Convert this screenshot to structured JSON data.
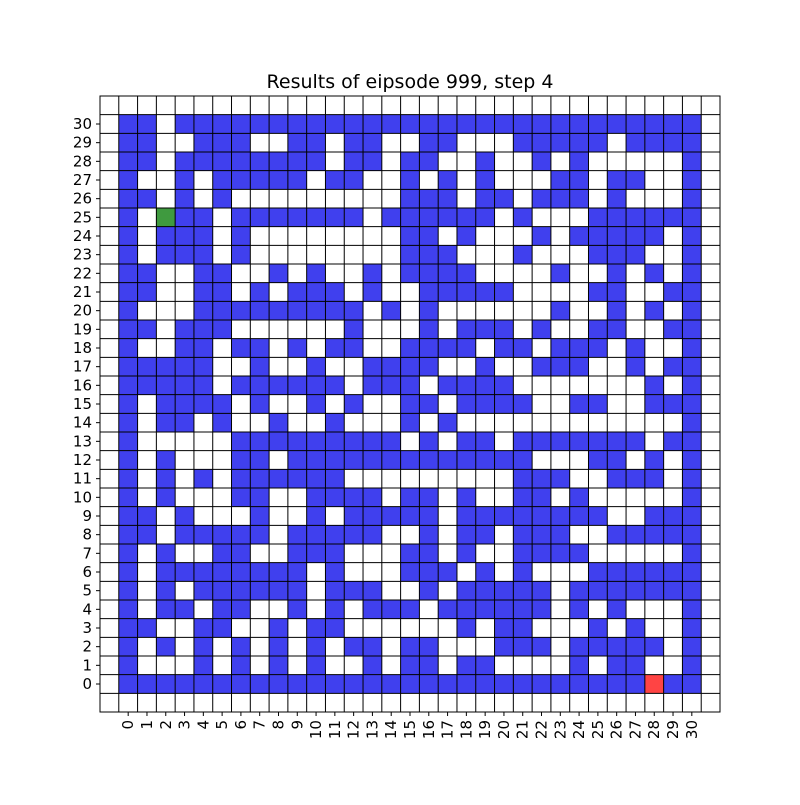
{
  "chart_data": {
    "type": "heatmap",
    "title": "Results of eipsode 999, step 4",
    "xlabel": "",
    "ylabel": "",
    "x_ticks": [
      "0",
      "1",
      "2",
      "3",
      "4",
      "5",
      "6",
      "7",
      "8",
      "9",
      "10",
      "11",
      "12",
      "13",
      "14",
      "15",
      "16",
      "17",
      "18",
      "19",
      "20",
      "21",
      "22",
      "23",
      "24",
      "25",
      "26",
      "27",
      "28",
      "29",
      "30"
    ],
    "y_ticks": [
      "0",
      "1",
      "2",
      "3",
      "4",
      "5",
      "6",
      "7",
      "8",
      "9",
      "10",
      "11",
      "12",
      "13",
      "14",
      "15",
      "16",
      "17",
      "18",
      "19",
      "20",
      "21",
      "22",
      "23",
      "24",
      "25",
      "26",
      "27",
      "28",
      "29",
      "30"
    ],
    "xlim": [
      -1.5,
      31.5
    ],
    "ylim": [
      -1.5,
      31.5
    ],
    "grid": true,
    "legend": "none",
    "colors": {
      "wall": "#4040ee",
      "open": "#ffffff",
      "agent": "#3f9a3f",
      "goal": "#ff4444",
      "grid": "#000000"
    },
    "legend_key": {
      "1": "wall",
      "0": "open"
    },
    "grid_rows_top_to_bottom": [
      "1101111111111111111111111111111",
      "1100111001101100110001111101111",
      "1101111111101101100100101000001",
      "1001011111011001010100011011001",
      "1101010000000001110110111010001",
      "1001101111111011111101000111111",
      "1011101000000001101000101111101",
      "1011101000000001110001000111001",
      "1100110010100101111000010010101",
      "1100110101110100111110000110011",
      "1000111111111010100000010010101",
      "1101110000001000101110100110011",
      "1001101101011001111011011101001",
      "1111100100100111100100111001011",
      "1111101111110111011110000000101",
      "1011110100101001101111001100111",
      "1011010010010001010000000000001",
      "1000001111111110101101111111011",
      "1010001101111111111111000110101",
      "1010101111110000000001110011101",
      "1010001100111101101001101000001",
      "1101000100101111101111111100111",
      "1101111101111100101101110011111",
      "1010011001110001101001111000001",
      "1011111111010001110101000111111",
      "1010111111011100101111101111111",
      "1011011001010111011111101010001",
      "1100110010110000001011000101001",
      "1010101010101101100011101111101",
      "1000101010100101101100001011001",
      "1111111111111111111111111111111"
    ],
    "agent_cell": {
      "x": 2,
      "y": 25
    },
    "goal_cell": {
      "x": 28,
      "y": 0
    }
  }
}
